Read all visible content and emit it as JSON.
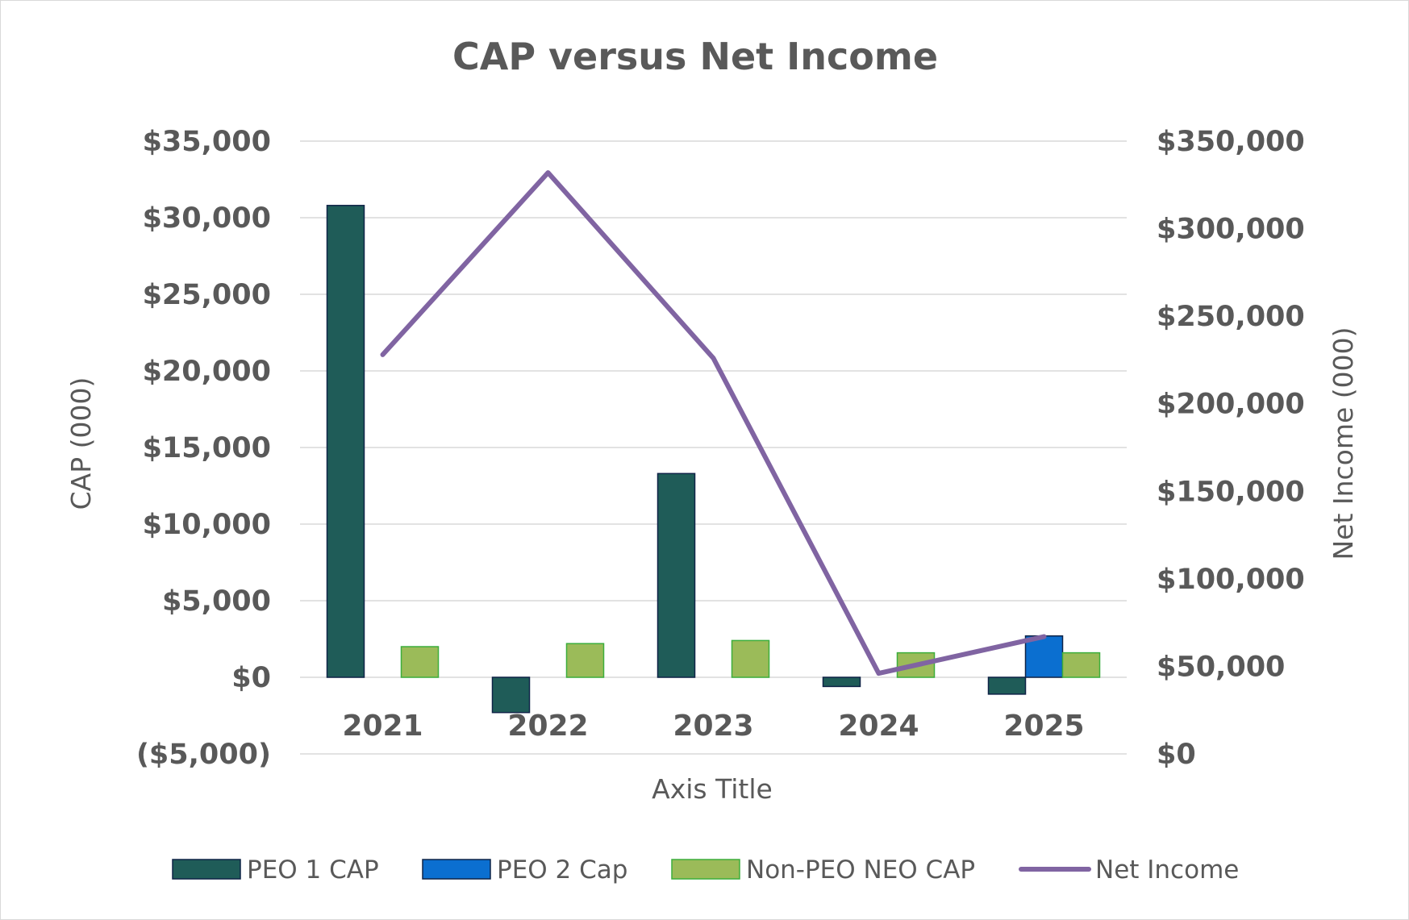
{
  "chart_data": {
    "type": "bar",
    "title": "CAP versus Net Income",
    "xlabel": "Axis Title",
    "ylabel": "CAP (000)",
    "y2label": "Net Income (000)",
    "categories": [
      "2021",
      "2022",
      "2023",
      "2024",
      "2025"
    ],
    "ylim": [
      -5000,
      35000
    ],
    "y2lim": [
      0,
      350000
    ],
    "yticks": [
      -5000,
      0,
      5000,
      10000,
      15000,
      20000,
      25000,
      30000,
      35000
    ],
    "yticklabels": [
      "($5,000)",
      "$0",
      "$5,000",
      "$10,000",
      "$15,000",
      "$20,000",
      "$25,000",
      "$30,000",
      "$35,000"
    ],
    "y2ticks": [
      0,
      50000,
      100000,
      150000,
      200000,
      250000,
      300000,
      350000
    ],
    "y2ticklabels": [
      "$0",
      "$50,000",
      "$100,000",
      "$150,000",
      "$200,000",
      "$250,000",
      "$300,000",
      "$350,000"
    ],
    "grid": true,
    "legend_position": "bottom",
    "series": [
      {
        "name": "PEO 1 CAP",
        "kind": "bar",
        "axis": "left",
        "color": "#1f5c58",
        "values": [
          30800,
          -2300,
          13300,
          -600,
          -1100
        ]
      },
      {
        "name": "PEO 2 Cap",
        "kind": "bar",
        "axis": "left",
        "color": "#0b6fd0",
        "values": [
          null,
          null,
          null,
          null,
          2700
        ]
      },
      {
        "name": "Non-PEO NEO CAP",
        "kind": "bar",
        "axis": "left",
        "color": "#9bbb59",
        "values": [
          2000,
          2200,
          2400,
          1600,
          1600
        ]
      },
      {
        "name": "Net Income",
        "kind": "line",
        "axis": "right",
        "color": "#8064a2",
        "values": [
          228000,
          332000,
          226000,
          46000,
          67000
        ]
      }
    ]
  }
}
